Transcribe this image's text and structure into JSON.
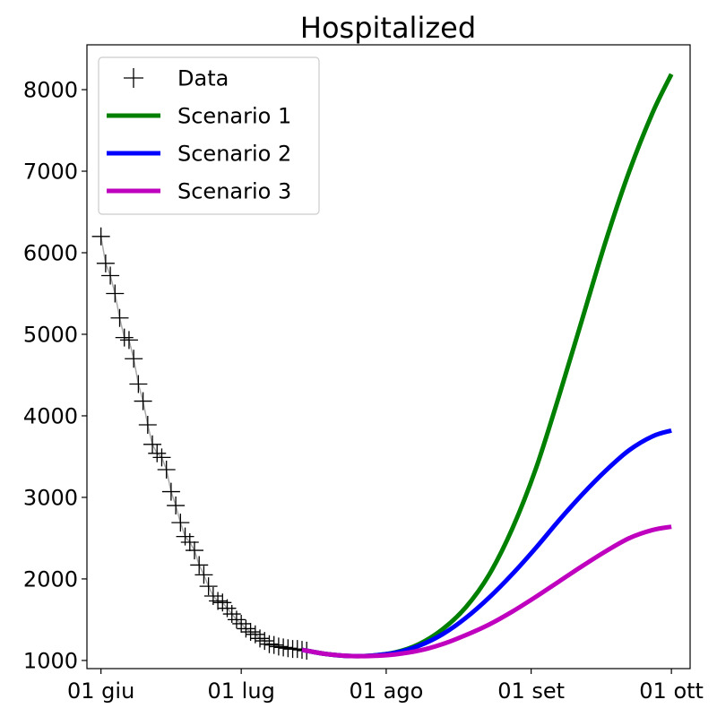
{
  "chart_data": {
    "type": "line",
    "title": "Hospitalized",
    "xlabel": "",
    "ylabel": "",
    "x_axis_kind": "date",
    "xlim": [
      "2020-05-29",
      "2020-10-05"
    ],
    "ylim": [
      900,
      8550
    ],
    "x_ticks": [
      {
        "date": "2020-06-01",
        "label": "01 giu"
      },
      {
        "date": "2020-07-01",
        "label": "01 lug"
      },
      {
        "date": "2020-08-01",
        "label": "01 ago"
      },
      {
        "date": "2020-09-01",
        "label": "01 set"
      },
      {
        "date": "2020-10-01",
        "label": "01 ott"
      }
    ],
    "y_ticks": [
      1000,
      2000,
      3000,
      4000,
      5000,
      6000,
      7000,
      8000
    ],
    "y_tick_labels": [
      "1000",
      "2000",
      "3000",
      "4000",
      "5000",
      "6000",
      "7000",
      "8000"
    ],
    "grid": false,
    "legend_position": "top-left",
    "legend": [
      {
        "label": "Data",
        "marker": "plus",
        "color": "#000000"
      },
      {
        "label": "Scenario 1",
        "marker": "line",
        "color": "#008000"
      },
      {
        "label": "Scenario 2",
        "marker": "line",
        "color": "#0000ff"
      },
      {
        "label": "Scenario 3",
        "marker": "line",
        "color": "#bf00bf"
      }
    ],
    "data_series": {
      "name": "Data",
      "color": "#000000",
      "connector_color": "#aaaaaa",
      "x": [
        "2020-06-01",
        "2020-06-02",
        "2020-06-03",
        "2020-06-04",
        "2020-06-05",
        "2020-06-06",
        "2020-06-07",
        "2020-06-08",
        "2020-06-09",
        "2020-06-10",
        "2020-06-11",
        "2020-06-12",
        "2020-06-13",
        "2020-06-14",
        "2020-06-15",
        "2020-06-16",
        "2020-06-17",
        "2020-06-18",
        "2020-06-19",
        "2020-06-20",
        "2020-06-21",
        "2020-06-22",
        "2020-06-23",
        "2020-06-24",
        "2020-06-25",
        "2020-06-26",
        "2020-06-27",
        "2020-06-28",
        "2020-06-29",
        "2020-06-30",
        "2020-07-01",
        "2020-07-02",
        "2020-07-03",
        "2020-07-04",
        "2020-07-05",
        "2020-07-06",
        "2020-07-07",
        "2020-07-08",
        "2020-07-09",
        "2020-07-10",
        "2020-07-11",
        "2020-07-12",
        "2020-07-13",
        "2020-07-14",
        "2020-07-15"
      ],
      "y": [
        6200,
        5870,
        5720,
        5500,
        5200,
        4960,
        4930,
        4700,
        4390,
        4180,
        3890,
        3650,
        3540,
        3490,
        3340,
        3070,
        2900,
        2690,
        2520,
        2450,
        2350,
        2170,
        2050,
        1910,
        1790,
        1730,
        1710,
        1640,
        1570,
        1500,
        1450,
        1390,
        1350,
        1320,
        1270,
        1240,
        1200,
        1190,
        1170,
        1160,
        1150,
        1140,
        1140,
        1130,
        1120
      ]
    },
    "series": [
      {
        "name": "Scenario 1",
        "color": "#008000",
        "x": [
          "2020-07-14",
          "2020-07-19",
          "2020-07-24",
          "2020-07-29",
          "2020-08-03",
          "2020-08-08",
          "2020-08-13",
          "2020-08-18",
          "2020-08-23",
          "2020-08-28",
          "2020-09-02",
          "2020-09-07",
          "2020-09-12",
          "2020-09-17",
          "2020-09-22",
          "2020-09-27",
          "2020-10-01"
        ],
        "y": [
          1130,
          1080,
          1055,
          1060,
          1100,
          1200,
          1380,
          1650,
          2050,
          2620,
          3350,
          4250,
          5200,
          6150,
          7000,
          7720,
          8190
        ]
      },
      {
        "name": "Scenario 2",
        "color": "#0000ff",
        "x": [
          "2020-07-14",
          "2020-07-19",
          "2020-07-24",
          "2020-07-29",
          "2020-08-03",
          "2020-08-08",
          "2020-08-13",
          "2020-08-18",
          "2020-08-23",
          "2020-08-28",
          "2020-09-02",
          "2020-09-07",
          "2020-09-12",
          "2020-09-17",
          "2020-09-22",
          "2020-09-27",
          "2020-10-01"
        ],
        "y": [
          1130,
          1080,
          1055,
          1060,
          1095,
          1180,
          1320,
          1520,
          1770,
          2060,
          2380,
          2720,
          3040,
          3330,
          3580,
          3750,
          3820
        ]
      },
      {
        "name": "Scenario 3",
        "color": "#bf00bf",
        "x": [
          "2020-07-14",
          "2020-07-19",
          "2020-07-24",
          "2020-07-29",
          "2020-08-03",
          "2020-08-08",
          "2020-08-13",
          "2020-08-18",
          "2020-08-23",
          "2020-08-28",
          "2020-09-02",
          "2020-09-07",
          "2020-09-12",
          "2020-09-17",
          "2020-09-22",
          "2020-09-27",
          "2020-10-01"
        ],
        "y": [
          1130,
          1080,
          1055,
          1055,
          1075,
          1120,
          1200,
          1310,
          1440,
          1600,
          1780,
          1970,
          2160,
          2340,
          2500,
          2600,
          2640
        ]
      }
    ]
  }
}
